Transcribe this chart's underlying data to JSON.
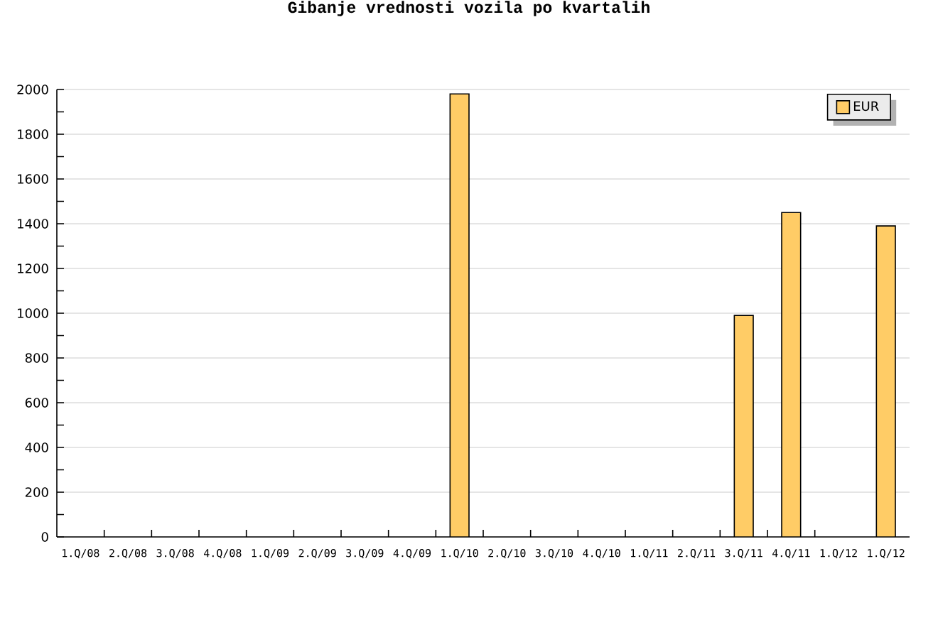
{
  "chart_data": {
    "type": "bar",
    "title": "Gibanje vrednosti vozila po kvartalih",
    "categories": [
      "1.Q/08",
      "2.Q/08",
      "3.Q/08",
      "4.Q/08",
      "1.Q/09",
      "2.Q/09",
      "3.Q/09",
      "4.Q/09",
      "1.Q/10",
      "2.Q/10",
      "3.Q/10",
      "4.Q/10",
      "1.Q/11",
      "2.Q/11",
      "3.Q/11",
      "4.Q/11",
      "1.Q/12",
      "1.Q/12"
    ],
    "series": [
      {
        "name": "EUR",
        "color": "#ffcc66",
        "values": [
          null,
          null,
          null,
          null,
          null,
          null,
          null,
          null,
          1980,
          null,
          null,
          null,
          null,
          null,
          990,
          1450,
          null,
          1390
        ]
      }
    ],
    "ylim": [
      0,
      2000
    ],
    "yticks": [
      0,
      200,
      400,
      600,
      800,
      1000,
      1200,
      1400,
      1600,
      1800,
      2000
    ],
    "grid": "y",
    "legend": "top right"
  }
}
